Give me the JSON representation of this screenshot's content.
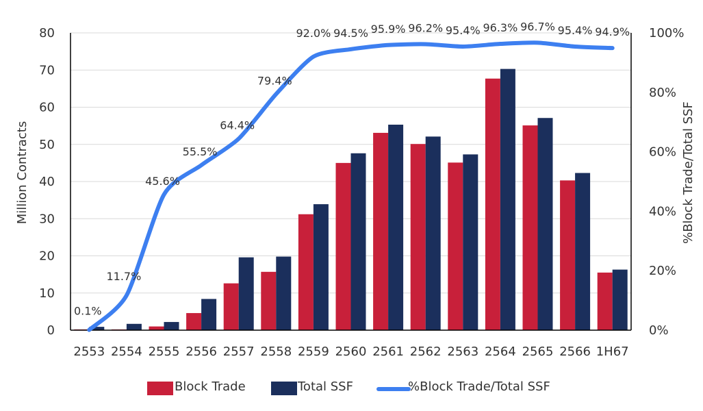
{
  "chart_data": {
    "type": "bar",
    "categories": [
      "2553",
      "2554",
      "2555",
      "2556",
      "2557",
      "2558",
      "2559",
      "2560",
      "2561",
      "2562",
      "2563",
      "2564",
      "2565",
      "2566",
      "1H67"
    ],
    "series": [
      {
        "name": "Block Trade",
        "type": "bar",
        "axis": "left",
        "color": "#C8203A",
        "values": [
          0.2,
          0.2,
          1.0,
          4.6,
          12.6,
          15.7,
          31.2,
          45.0,
          53.1,
          50.1,
          45.1,
          67.7,
          55.1,
          40.3,
          15.5
        ]
      },
      {
        "name": "Total SSF",
        "type": "bar",
        "axis": "left",
        "color": "#1B2F5C",
        "values": [
          0.9,
          1.7,
          2.2,
          8.4,
          19.6,
          19.8,
          33.9,
          47.6,
          55.3,
          52.1,
          47.3,
          70.3,
          57.1,
          42.3,
          16.3
        ]
      },
      {
        "name": "%Block Trade/Total SSF",
        "type": "line",
        "axis": "right",
        "color": "#3D7FF0",
        "values": [
          0.1,
          11.7,
          45.6,
          55.5,
          64.4,
          79.4,
          92.0,
          94.5,
          95.9,
          96.2,
          95.4,
          96.3,
          96.7,
          95.4,
          94.9
        ],
        "labels": [
          "0.1%",
          "11.7%",
          "45.6%",
          "55.5%",
          "64.4%",
          "79.4%",
          "92.0%",
          "94.5%",
          "95.9%",
          "96.2%",
          "95.4%",
          "96.3%",
          "96.7%",
          "95.4%",
          "94.9%"
        ]
      }
    ],
    "ylabel": "Million Contracts",
    "y2label": "%Block Trade/Total SSF",
    "ylim": [
      0,
      80
    ],
    "y_ticks": [
      "0",
      "10",
      "20",
      "30",
      "40",
      "50",
      "60",
      "70",
      "80"
    ],
    "y2lim": [
      0,
      100
    ],
    "y2_ticks": [
      "0%",
      "20%",
      "40%",
      "60%",
      "80%",
      "100%"
    ],
    "grid": true,
    "legend_position": "bottom"
  }
}
